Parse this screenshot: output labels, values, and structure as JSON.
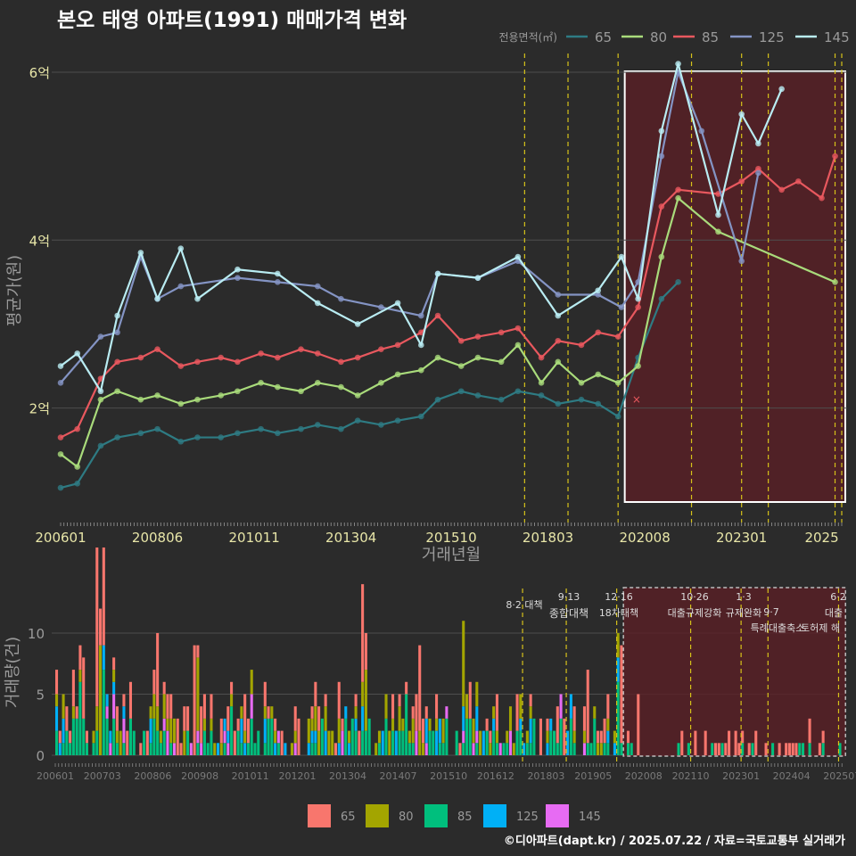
{
  "title": "본오 태영 아파트(1991) 매매가격 변화",
  "credit": "©디아파트(dapt.kr) / 2025.07.22 / 자료=국토교통부 실거래가",
  "colors": {
    "background": "#2b2b2b",
    "grid": "#4e4e4e",
    "title": "#ffffff",
    "axis_text": "#e8e6a8",
    "axis_title": "#9a9a9a",
    "small_tick": "#7a7a7a",
    "vline": "#d6c21a",
    "highlight_fill": "#5a1f26",
    "highlight_stroke": "#ffffff",
    "s65": "#2e7b83",
    "s80": "#a9db7b",
    "s85": "#e8585e",
    "s125": "#8494c4",
    "s145": "#b9ecf2",
    "v65": "#f8766d",
    "v80": "#a3a500",
    "v85": "#00bf7d",
    "v125": "#00b0f6",
    "v145": "#e76bf3"
  },
  "chart_data": [
    {
      "type": "line",
      "title": "본오 태영 아파트(1991) 매매가격 변화",
      "xlabel": "거래년월",
      "ylabel": "평균가(원)",
      "x_ticks": [
        "200601",
        "200806",
        "201011",
        "201304",
        "201510",
        "201803",
        "202008",
        "202301",
        "2025"
      ],
      "y_ticks": [
        "2억",
        "4억",
        "6억"
      ],
      "y_tick_values": [
        2,
        4,
        6
      ],
      "ylim": [
        0.7,
        6.35
      ],
      "legend_title": "전용면적(㎡)",
      "legend_position": "top-right",
      "highlight_period": [
        "2020-02",
        "2025-07"
      ],
      "policy_dates": [
        "2017-08",
        "2018-09",
        "2019-12",
        "2021-10",
        "2023-01",
        "2023-09",
        "2025-05",
        "2025-07"
      ],
      "series": [
        {
          "name": "65",
          "x": [
            "2006-01",
            "2006-06",
            "2007-01",
            "2007-06",
            "2008-01",
            "2008-06",
            "2009-01",
            "2009-06",
            "2010-01",
            "2010-06",
            "2011-01",
            "2011-06",
            "2012-01",
            "2012-06",
            "2013-01",
            "2013-06",
            "2014-01",
            "2014-06",
            "2015-01",
            "2015-06",
            "2016-01",
            "2016-06",
            "2017-01",
            "2017-06",
            "2018-01",
            "2018-06",
            "2019-01",
            "2019-06",
            "2019-12",
            "2020-06",
            "2021-01",
            "2021-06"
          ],
          "values": [
            1.05,
            1.1,
            1.55,
            1.65,
            1.7,
            1.75,
            1.6,
            1.65,
            1.65,
            1.7,
            1.75,
            1.7,
            1.75,
            1.8,
            1.75,
            1.85,
            1.8,
            1.85,
            1.9,
            2.1,
            2.2,
            2.15,
            2.1,
            2.2,
            2.15,
            2.05,
            2.1,
            2.05,
            1.9,
            2.6,
            3.3,
            3.5
          ]
        },
        {
          "name": "80",
          "x": [
            "2006-01",
            "2006-06",
            "2007-01",
            "2007-06",
            "2008-01",
            "2008-06",
            "2009-01",
            "2009-06",
            "2010-01",
            "2010-06",
            "2011-01",
            "2011-06",
            "2012-01",
            "2012-06",
            "2013-01",
            "2013-06",
            "2014-01",
            "2014-06",
            "2015-01",
            "2015-06",
            "2016-01",
            "2016-06",
            "2017-01",
            "2017-06",
            "2018-01",
            "2018-06",
            "2019-01",
            "2019-06",
            "2019-12",
            "2020-06",
            "2021-01",
            "2021-06",
            "2022-06",
            "2025-05"
          ],
          "values": [
            1.45,
            1.3,
            2.1,
            2.2,
            2.1,
            2.15,
            2.05,
            2.1,
            2.15,
            2.2,
            2.3,
            2.25,
            2.2,
            2.3,
            2.25,
            2.15,
            2.3,
            2.4,
            2.45,
            2.6,
            2.5,
            2.6,
            2.55,
            2.75,
            2.3,
            2.55,
            2.3,
            2.4,
            2.3,
            2.5,
            3.8,
            4.5,
            4.1,
            3.5
          ]
        },
        {
          "name": "85",
          "x": [
            "2006-01",
            "2006-06",
            "2007-01",
            "2007-06",
            "2008-01",
            "2008-06",
            "2009-01",
            "2009-06",
            "2010-01",
            "2010-06",
            "2011-01",
            "2011-06",
            "2012-01",
            "2012-06",
            "2013-01",
            "2013-06",
            "2014-01",
            "2014-06",
            "2015-01",
            "2015-06",
            "2016-01",
            "2016-06",
            "2017-01",
            "2017-06",
            "2018-01",
            "2018-06",
            "2019-01",
            "2019-06",
            "2019-12",
            "2020-06",
            "2021-01",
            "2021-06",
            "2022-06",
            "2023-01",
            "2023-06",
            "2024-01",
            "2024-06",
            "2025-01",
            "2025-05"
          ],
          "values": [
            1.65,
            1.75,
            2.35,
            2.55,
            2.6,
            2.7,
            2.5,
            2.55,
            2.6,
            2.55,
            2.65,
            2.6,
            2.7,
            2.65,
            2.55,
            2.6,
            2.7,
            2.75,
            2.9,
            3.1,
            2.8,
            2.85,
            2.9,
            2.95,
            2.6,
            2.8,
            2.75,
            2.9,
            2.85,
            3.2,
            4.4,
            4.6,
            4.55,
            4.7,
            4.85,
            4.6,
            4.7,
            4.5,
            5.0
          ]
        },
        {
          "name": "125",
          "x": [
            "2006-01",
            "2007-01",
            "2007-06",
            "2008-01",
            "2008-06",
            "2009-01",
            "2010-06",
            "2011-06",
            "2012-06",
            "2013-01",
            "2014-01",
            "2015-01",
            "2015-06",
            "2016-06",
            "2017-06",
            "2018-06",
            "2019-06",
            "2020-01",
            "2020-06",
            "2021-01",
            "2021-06",
            "2022-01",
            "2023-01",
            "2023-06"
          ],
          "values": [
            2.3,
            2.85,
            2.9,
            3.8,
            3.3,
            3.45,
            3.55,
            3.5,
            3.45,
            3.3,
            3.2,
            3.1,
            3.6,
            3.55,
            3.75,
            3.35,
            3.35,
            3.2,
            3.5,
            5.0,
            6.0,
            5.3,
            3.75,
            4.8
          ]
        },
        {
          "name": "145",
          "x": [
            "2006-01",
            "2006-06",
            "2007-01",
            "2007-06",
            "2008-01",
            "2008-06",
            "2009-01",
            "2009-06",
            "2010-06",
            "2011-06",
            "2012-06",
            "2013-06",
            "2014-06",
            "2015-01",
            "2015-06",
            "2016-06",
            "2017-06",
            "2018-06",
            "2019-06",
            "2020-01",
            "2020-06",
            "2021-01",
            "2021-06",
            "2022-06",
            "2023-01",
            "2023-06",
            "2024-01"
          ],
          "values": [
            2.5,
            2.65,
            2.2,
            3.1,
            3.85,
            3.3,
            3.9,
            3.3,
            3.65,
            3.6,
            3.25,
            3.0,
            3.25,
            2.75,
            3.6,
            3.55,
            3.8,
            3.1,
            3.4,
            3.8,
            3.3,
            5.3,
            6.1,
            4.3,
            5.5,
            5.15,
            5.8
          ]
        }
      ]
    },
    {
      "type": "bar",
      "stacked": true,
      "ylabel": "거래량(건)",
      "x_ticks": [
        "200601",
        "200703",
        "200806",
        "200908",
        "201011",
        "201201",
        "201304",
        "201407",
        "201510",
        "201612",
        "201803",
        "201905",
        "202008",
        "202110",
        "202301",
        "202404",
        "202507"
      ],
      "y_ticks": [
        "0",
        "5",
        "10"
      ],
      "y_tick_values": [
        0,
        5,
        10
      ],
      "ylim": [
        0,
        13.5
      ],
      "legend_position": "bottom",
      "events": [
        {
          "date": "2017-08",
          "label": "8·2 대책"
        },
        {
          "date": "2018-09",
          "label": "9·13 종합대책"
        },
        {
          "date": "2019-12",
          "label": "12·16 18차대책"
        },
        {
          "date": "2021-10",
          "label": "10·26 대출규제강화"
        },
        {
          "date": "2023-01",
          "label": "1·3 규제완화"
        },
        {
          "date": "2023-09",
          "label": "9·7 특례대출축소"
        },
        {
          "date": "2025-06",
          "label": "6·2 대출 토허제 해"
        }
      ],
      "annotation_texts": [
        "8·2 대책",
        "9·13",
        "종합대책",
        "12·16",
        "18차대책",
        "10·26",
        "대출규제강화",
        "1·3",
        "규제완화",
        "9·7",
        "특례대출축소",
        "토허제 해",
        "6·2",
        "대출"
      ],
      "series": [
        {
          "name": "65",
          "peak_months": [
            "2006-09",
            "2007-01",
            "2007-03",
            "2008-07",
            "2009-06",
            "2013-08",
            "2015-01",
            "2019-03",
            "2020-01",
            "2020-06"
          ],
          "peak_values": [
            5,
            13,
            8,
            6,
            9,
            8,
            7,
            6,
            8,
            5
          ]
        },
        {
          "name": "80",
          "peak_months": [
            "2007-02",
            "2009-07",
            "2013-09",
            "2016-02"
          ],
          "peak_values": [
            9,
            6,
            5,
            7
          ]
        },
        {
          "name": "85",
          "peak_months": [
            "2006-08",
            "2007-03",
            "2010-05",
            "2014-09",
            "2019-12"
          ],
          "peak_values": [
            6,
            7,
            4,
            5,
            6
          ]
        },
        {
          "name": "125",
          "peak_months": [
            "2010-08",
            "2015-03",
            "2017-10"
          ],
          "peak_values": [
            2,
            2,
            2
          ]
        },
        {
          "name": "145",
          "peak_months": [
            "2007-06",
            "2013-02",
            "2016-06"
          ],
          "peak_values": [
            2,
            2,
            1
          ]
        }
      ],
      "legend": [
        "65",
        "80",
        "85",
        "125",
        "145"
      ]
    }
  ]
}
